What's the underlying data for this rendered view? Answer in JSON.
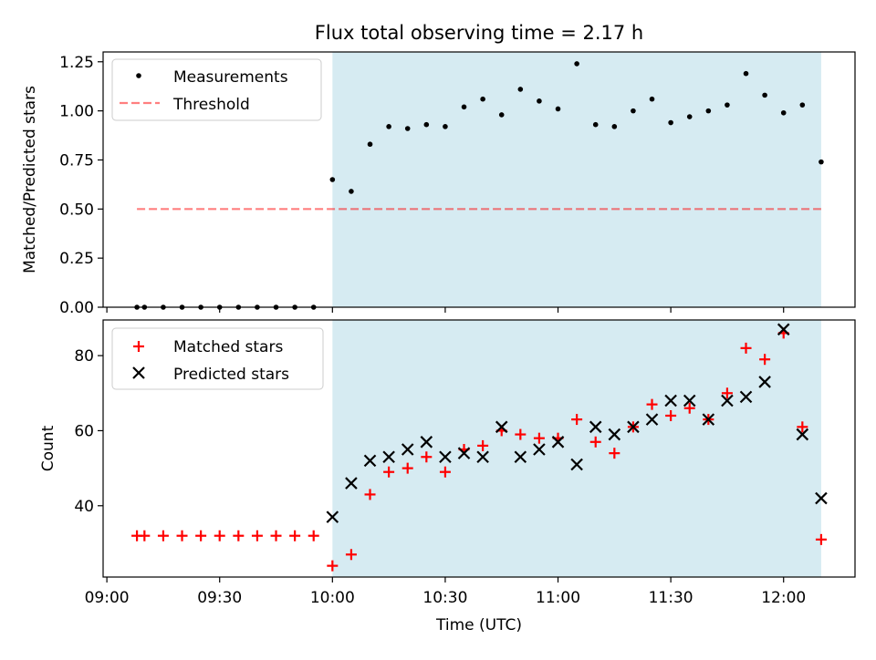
{
  "title": "Flux total observing time = 2.17 h",
  "colors": {
    "shade": "#add8e6",
    "threshold": "#ff0000",
    "matched": "#ff0000",
    "predicted": "#000000",
    "measurement": "#000000"
  },
  "chart_data": [
    {
      "type": "scatter",
      "ylabel": "Matched/Predicted stars",
      "xlim": [
        "08:59",
        "12:19"
      ],
      "ylim": [
        0,
        1.3
      ],
      "yticks": [
        "0.00",
        "0.25",
        "0.50",
        "0.75",
        "1.00",
        "1.25"
      ],
      "legend_position": "top-left",
      "shaded_interval": [
        "10:00",
        "12:10"
      ],
      "threshold": {
        "name": "Threshold",
        "value": 0.5,
        "x_range": [
          "09:08",
          "12:10"
        ]
      },
      "series": [
        {
          "name": "Measurements",
          "marker": "dot",
          "x": [
            "09:08",
            "09:10",
            "09:15",
            "09:20",
            "09:25",
            "09:30",
            "09:35",
            "09:40",
            "09:45",
            "09:50",
            "09:55",
            "10:00",
            "10:05",
            "10:10",
            "10:15",
            "10:20",
            "10:25",
            "10:30",
            "10:35",
            "10:40",
            "10:45",
            "10:50",
            "10:55",
            "11:00",
            "11:05",
            "11:10",
            "11:15",
            "11:20",
            "11:25",
            "11:30",
            "11:35",
            "11:40",
            "11:45",
            "11:50",
            "11:55",
            "12:00",
            "12:05",
            "12:10"
          ],
          "values": [
            0,
            0,
            0,
            0,
            0,
            0,
            0,
            0,
            0,
            0,
            0,
            0.65,
            0.59,
            0.83,
            0.92,
            0.91,
            0.93,
            0.92,
            1.02,
            1.06,
            0.98,
            1.11,
            1.05,
            1.01,
            1.24,
            0.93,
            0.92,
            1.0,
            1.06,
            0.94,
            0.97,
            1.0,
            1.03,
            1.19,
            1.08,
            0.99,
            1.03,
            0.74
          ]
        }
      ]
    },
    {
      "type": "scatter",
      "xlabel": "Time (UTC)",
      "ylabel": "Count",
      "xlim": [
        "08:59",
        "12:19"
      ],
      "ylim": [
        21,
        89.5
      ],
      "xticks": [
        "09:00",
        "09:30",
        "10:00",
        "10:30",
        "11:00",
        "11:30",
        "12:00"
      ],
      "yticks": [
        "40",
        "60",
        "80"
      ],
      "legend_position": "top-left",
      "shaded_interval": [
        "10:00",
        "12:10"
      ],
      "series": [
        {
          "name": "Matched stars",
          "marker": "plus",
          "x": [
            "09:08",
            "09:10",
            "09:15",
            "09:20",
            "09:25",
            "09:30",
            "09:35",
            "09:40",
            "09:45",
            "09:50",
            "09:55",
            "10:00",
            "10:05",
            "10:10",
            "10:15",
            "10:20",
            "10:25",
            "10:30",
            "10:35",
            "10:40",
            "10:45",
            "10:50",
            "10:55",
            "11:00",
            "11:05",
            "11:10",
            "11:15",
            "11:20",
            "11:25",
            "11:30",
            "11:35",
            "11:40",
            "11:45",
            "11:50",
            "11:55",
            "12:00",
            "12:05",
            "12:10"
          ],
          "values": [
            32,
            32,
            32,
            32,
            32,
            32,
            32,
            32,
            32,
            32,
            32,
            24,
            27,
            43,
            49,
            50,
            53,
            49,
            55,
            56,
            60,
            59,
            58,
            58,
            63,
            57,
            54,
            61,
            67,
            64,
            66,
            63,
            70,
            82,
            79,
            86,
            61,
            31
          ]
        },
        {
          "name": "Predicted stars",
          "marker": "x",
          "x": [
            "10:00",
            "10:05",
            "10:10",
            "10:15",
            "10:20",
            "10:25",
            "10:30",
            "10:35",
            "10:40",
            "10:45",
            "10:50",
            "10:55",
            "11:00",
            "11:05",
            "11:10",
            "11:15",
            "11:20",
            "11:25",
            "11:30",
            "11:35",
            "11:40",
            "11:45",
            "11:50",
            "11:55",
            "12:00",
            "12:05",
            "12:10"
          ],
          "values": [
            37,
            46,
            52,
            53,
            55,
            57,
            53,
            54,
            53,
            61,
            53,
            55,
            57,
            51,
            61,
            59,
            61,
            63,
            68,
            68,
            63,
            68,
            69,
            73,
            87,
            59,
            42
          ]
        }
      ]
    }
  ]
}
